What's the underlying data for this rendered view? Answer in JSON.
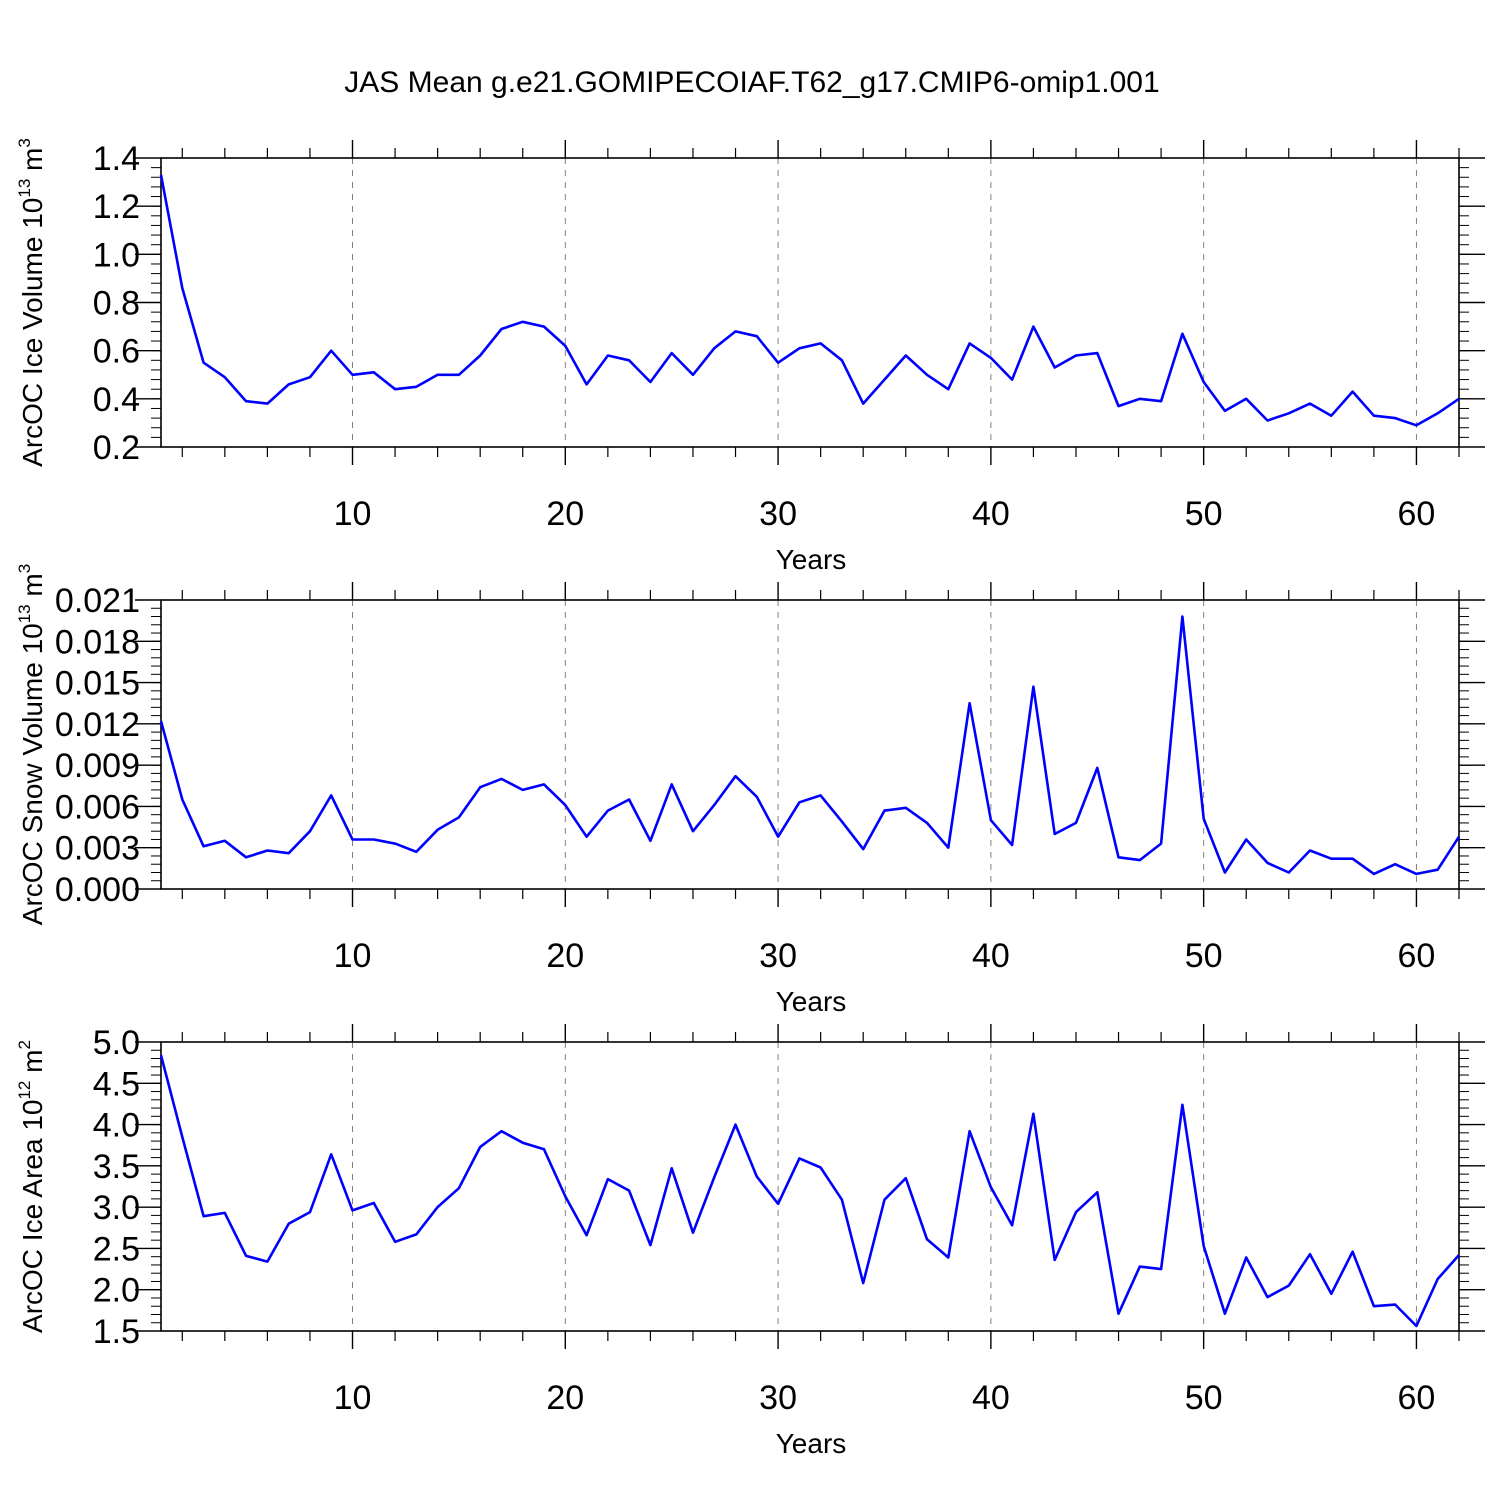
{
  "figure": {
    "title": "JAS Mean g.e21.GOMIPECOIAF.T62_g17.CMIP6-omip1.001"
  },
  "colors": {
    "line": "#0000ff",
    "axes": "#000000",
    "grid": "#808080"
  },
  "chart_data": [
    {
      "type": "line",
      "ylabel": {
        "text": "ArcOC Ice Volume 10",
        "sup": "13",
        "unit": " m",
        "unit_sup": "3"
      },
      "xlabel": "Years",
      "xlim": [
        1,
        62
      ],
      "ylim": [
        0.2,
        1.4
      ],
      "xticks": [
        10,
        20,
        30,
        40,
        50,
        60
      ],
      "yticks": [
        0.2,
        0.4,
        0.6,
        0.8,
        1.0,
        1.2,
        1.4
      ],
      "ytick_labels": [
        "0.2",
        "0.4",
        "0.6",
        "0.8",
        "1.0",
        "1.2",
        "1.4"
      ],
      "ytick_minor_step": 0.04,
      "grid": "vertical dashed",
      "series": [
        {
          "values": [
            1.33,
            0.86,
            0.55,
            0.49,
            0.39,
            0.38,
            0.46,
            0.49,
            0.6,
            0.5,
            0.51,
            0.44,
            0.45,
            0.5,
            0.5,
            0.58,
            0.69,
            0.72,
            0.7,
            0.62,
            0.46,
            0.58,
            0.56,
            0.47,
            0.59,
            0.5,
            0.61,
            0.68,
            0.66,
            0.55,
            0.61,
            0.63,
            0.56,
            0.38,
            0.48,
            0.58,
            0.5,
            0.44,
            0.63,
            0.57,
            0.48,
            0.7,
            0.53,
            0.58,
            0.59,
            0.37,
            0.4,
            0.39,
            0.67,
            0.47,
            0.35,
            0.4,
            0.31,
            0.34,
            0.38,
            0.33,
            0.43,
            0.33,
            0.32,
            0.29,
            0.34,
            0.4
          ]
        }
      ]
    },
    {
      "type": "line",
      "ylabel": {
        "text": "ArcOC Snow Volume 10",
        "sup": "13",
        "unit": " m",
        "unit_sup": "3"
      },
      "xlabel": "Years",
      "xlim": [
        1,
        62
      ],
      "ylim": [
        0.0,
        0.021
      ],
      "xticks": [
        10,
        20,
        30,
        40,
        50,
        60
      ],
      "yticks": [
        0.0,
        0.003,
        0.006,
        0.009,
        0.012,
        0.015,
        0.018,
        0.021
      ],
      "ytick_labels": [
        "0.000",
        "0.003",
        "0.006",
        "0.009",
        "0.012",
        "0.015",
        "0.018",
        "0.021"
      ],
      "ytick_minor_step": 0.0006,
      "grid": "vertical dashed",
      "series": [
        {
          "values": [
            0.0122,
            0.0065,
            0.0031,
            0.0035,
            0.0023,
            0.0028,
            0.0026,
            0.0042,
            0.0068,
            0.0036,
            0.0036,
            0.0033,
            0.0027,
            0.0043,
            0.0052,
            0.0074,
            0.008,
            0.0072,
            0.0076,
            0.0061,
            0.0038,
            0.0057,
            0.0065,
            0.0035,
            0.0076,
            0.0042,
            0.0061,
            0.0082,
            0.0067,
            0.0038,
            0.0063,
            0.0068,
            0.0049,
            0.0029,
            0.0057,
            0.0059,
            0.0048,
            0.003,
            0.0135,
            0.005,
            0.0032,
            0.0147,
            0.004,
            0.0048,
            0.0088,
            0.0023,
            0.0021,
            0.0033,
            0.0198,
            0.0051,
            0.0012,
            0.0036,
            0.0019,
            0.0012,
            0.0028,
            0.0022,
            0.0022,
            0.0011,
            0.0018,
            0.0011,
            0.0014,
            0.0038
          ]
        }
      ]
    },
    {
      "type": "line",
      "ylabel": {
        "text": "ArcOC Ice Area 10",
        "sup": "12",
        "unit": " m",
        "unit_sup": "2"
      },
      "xlabel": "Years",
      "xlim": [
        1,
        62
      ],
      "ylim": [
        1.5,
        5.0
      ],
      "xticks": [
        10,
        20,
        30,
        40,
        50,
        60
      ],
      "yticks": [
        1.5,
        2.0,
        2.5,
        3.0,
        3.5,
        4.0,
        4.5,
        5.0
      ],
      "ytick_labels": [
        "1.5",
        "2.0",
        "2.5",
        "3.0",
        "3.5",
        "4.0",
        "4.5",
        "5.0"
      ],
      "ytick_minor_step": 0.1,
      "grid": "vertical dashed",
      "series": [
        {
          "values": [
            4.84,
            3.85,
            2.89,
            2.93,
            2.41,
            2.34,
            2.8,
            2.94,
            3.64,
            2.96,
            3.05,
            2.58,
            2.67,
            3.0,
            3.23,
            3.73,
            3.92,
            3.78,
            3.7,
            3.13,
            2.66,
            3.34,
            3.2,
            2.54,
            3.47,
            2.69,
            3.36,
            4.0,
            3.37,
            3.04,
            3.59,
            3.48,
            3.09,
            2.08,
            3.09,
            3.35,
            2.61,
            2.39,
            3.92,
            3.24,
            2.78,
            4.13,
            2.36,
            2.94,
            3.18,
            1.71,
            2.28,
            2.25,
            4.24,
            2.53,
            1.71,
            2.39,
            1.91,
            2.05,
            2.43,
            1.95,
            2.46,
            1.8,
            1.82,
            1.56,
            2.13,
            2.42
          ]
        }
      ]
    }
  ]
}
